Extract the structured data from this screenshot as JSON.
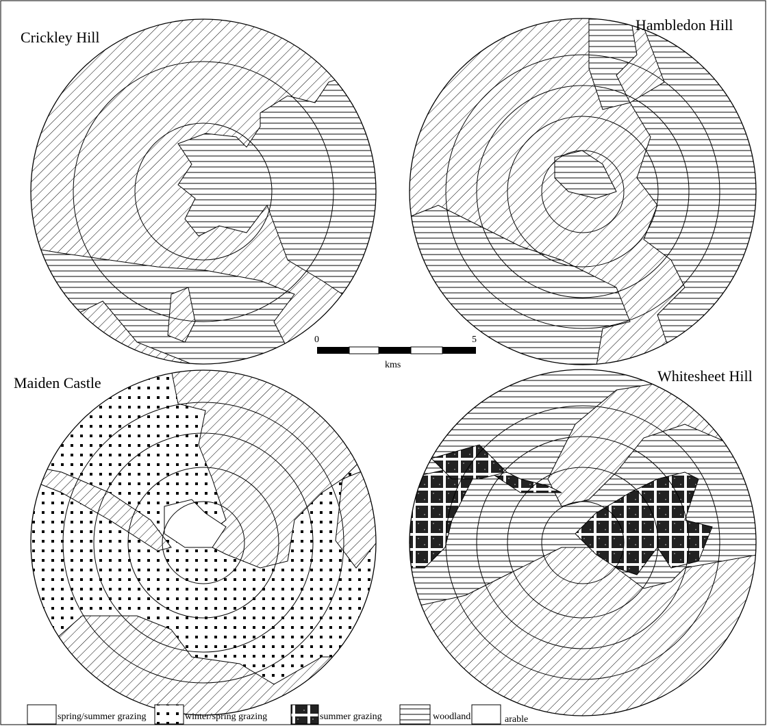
{
  "panels": [
    {
      "title": "Crickley Hill"
    },
    {
      "title": "Hambledon Hill"
    },
    {
      "title": "Maiden Castle"
    },
    {
      "title": "Whitesheet Hill"
    }
  ],
  "scale": {
    "start": "0",
    "end": "5",
    "unit": "kms"
  },
  "legend": [
    {
      "label": "spring/summer grazing"
    },
    {
      "label": "winter/spring grazing"
    },
    {
      "label": "summer grazing"
    },
    {
      "label": "woodland"
    },
    {
      "label": "arable"
    }
  ]
}
